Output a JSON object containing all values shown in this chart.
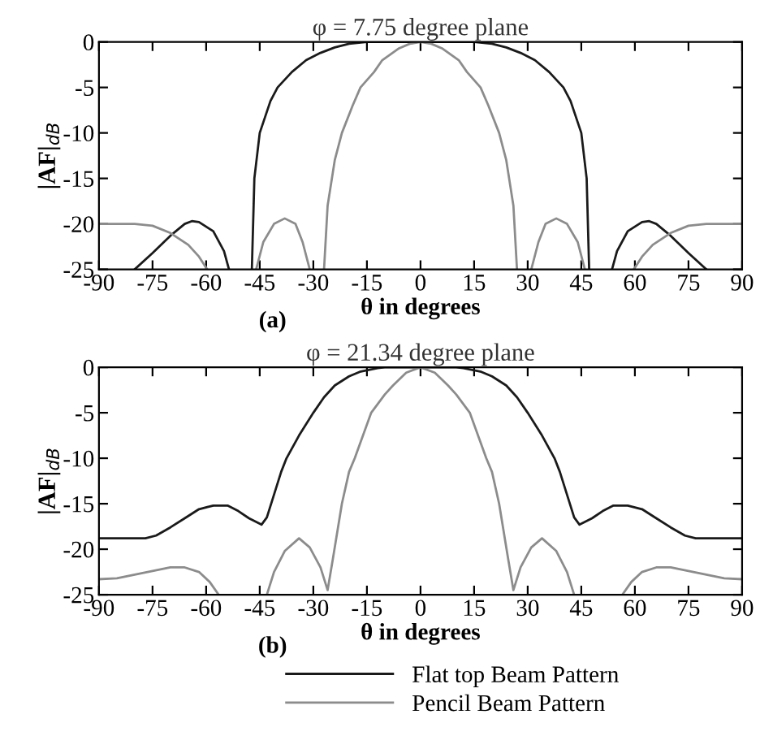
{
  "chart_data": [
    {
      "type": "line",
      "title": "φ = 7.75 degree plane",
      "xlabel": "θ in degrees",
      "ylabel": "|AF|$_{dB}$",
      "annotations": [
        "(a)"
      ],
      "xlim": [
        -90,
        90
      ],
      "ylim": [
        -25,
        0
      ],
      "xticks": [
        -90,
        -75,
        -60,
        -45,
        -30,
        -15,
        0,
        15,
        30,
        45,
        60,
        75,
        90
      ],
      "yticks": [
        -25,
        -20,
        -15,
        -10,
        -5,
        0
      ],
      "grid": false,
      "legend": false,
      "series": [
        {
          "color": "#1a1a1a",
          "x": [
            -80,
            -75,
            -70,
            -66,
            -64,
            -62,
            -58,
            -55,
            -53.6,
            -50,
            -47.2,
            -46.5,
            -45,
            -42,
            -40,
            -36,
            -32,
            -28,
            -24,
            -20,
            -15,
            0,
            15,
            20,
            24,
            28,
            32,
            36,
            40,
            42,
            45,
            46.5,
            47.2,
            50,
            53.6,
            55,
            58,
            62,
            64,
            66,
            70,
            75,
            80
          ],
          "values": [
            -25,
            -23.2,
            -21.3,
            -20,
            -19.7,
            -19.8,
            -20.8,
            -23,
            -25,
            null,
            -25,
            -15,
            -10,
            -6.5,
            -5,
            -3.3,
            -2,
            -1.2,
            -0.6,
            -0.2,
            0,
            0,
            0,
            -0.2,
            -0.6,
            -1.2,
            -2,
            -3.3,
            -5,
            -6.5,
            -10,
            -15,
            -25,
            null,
            -25,
            -23,
            -20.8,
            -19.8,
            -19.7,
            -20,
            -21.3,
            -23.2,
            -25
          ]
        },
        {
          "color": "#8c8c8c",
          "x": [
            -90,
            -80,
            -75,
            -70,
            -65,
            -62,
            -59.7,
            -52,
            -46,
            -44,
            -41,
            -38,
            -35,
            -33,
            -31,
            -29,
            -27,
            -26,
            -24,
            -22,
            -19,
            -16.8,
            -13,
            -10.7,
            -6,
            -3,
            0,
            3,
            6,
            10.7,
            13,
            16.8,
            19,
            22,
            24,
            26,
            27,
            29,
            31,
            33,
            35,
            38,
            41,
            44,
            46,
            52,
            59.7,
            62,
            65,
            70,
            75,
            80,
            90
          ],
          "values": [
            -20,
            -20,
            -20.2,
            -21,
            -22.3,
            -23.6,
            -25,
            null,
            -25,
            -22,
            -20,
            -19.4,
            -20,
            -22,
            -25,
            null,
            -25,
            -18,
            -13,
            -10,
            -7,
            -5,
            -3.3,
            -2,
            -0.7,
            -0.2,
            0,
            -0.2,
            -0.7,
            -2,
            -3.3,
            -5,
            -7,
            -10,
            -13,
            -18,
            -25,
            null,
            -25,
            -22,
            -20,
            -19.4,
            -20,
            -22,
            -25,
            null,
            -25,
            -23.6,
            -22.3,
            -21,
            -20.2,
            -20,
            -20
          ]
        }
      ]
    },
    {
      "type": "line",
      "title": "φ = 21.34 degree plane",
      "xlabel": "θ in degrees",
      "ylabel": "|AF|$_{dB}$",
      "annotations": [
        "(b)"
      ],
      "xlim": [
        -90,
        90
      ],
      "ylim": [
        -25,
        0
      ],
      "xticks": [
        -90,
        -75,
        -60,
        -45,
        -30,
        -15,
        0,
        15,
        30,
        45,
        60,
        75,
        90
      ],
      "yticks": [
        -25,
        -20,
        -15,
        -10,
        -5,
        0
      ],
      "grid": false,
      "legend": "bottom",
      "series": [
        {
          "name": "Flat top Beam Pattern",
          "color": "#1a1a1a",
          "x": [
            -90,
            -77,
            -74,
            -70,
            -66,
            -62,
            -58,
            -54,
            -51,
            -48,
            -44.5,
            -43,
            -41,
            -39,
            -37.5,
            -34,
            -30,
            -27,
            -24,
            -20,
            -17,
            -12,
            -10,
            0,
            10,
            12,
            17,
            20,
            24,
            27,
            30,
            34,
            37.5,
            39,
            41,
            43,
            44.5,
            48,
            51,
            54,
            58,
            62,
            66,
            70,
            74,
            77,
            90
          ],
          "values": [
            -18.8,
            -18.8,
            -18.5,
            -17.6,
            -16.6,
            -15.6,
            -15.2,
            -15.2,
            -15.8,
            -16.6,
            -17.3,
            -16.5,
            -14,
            -11.5,
            -10,
            -7.5,
            -5,
            -3.3,
            -2,
            -1,
            -0.5,
            -0.1,
            0,
            0,
            0,
            -0.1,
            -0.5,
            -1,
            -2,
            -3.3,
            -5,
            -7.5,
            -10,
            -11.5,
            -14,
            -16.5,
            -17.3,
            -16.6,
            -15.8,
            -15.2,
            -15.2,
            -15.6,
            -16.6,
            -17.6,
            -18.5,
            -18.8,
            -18.8
          ]
        },
        {
          "name": "Pencil Beam Pattern",
          "color": "#8c8c8c",
          "x": [
            -90,
            -85,
            -80,
            -75,
            -70,
            -66,
            -62,
            -59,
            -56.5,
            -50,
            -43,
            -41,
            -38,
            -34,
            -31,
            -28,
            -26,
            -24.5,
            -22,
            -20,
            -18.4,
            -13.8,
            -10,
            -7.7,
            -4,
            0,
            4,
            7.7,
            10,
            13.8,
            18.4,
            20,
            22,
            24.5,
            26,
            28,
            31,
            34,
            38,
            41,
            43,
            50,
            56.5,
            59,
            62,
            66,
            70,
            75,
            80,
            85,
            90
          ],
          "values": [
            -23.3,
            -23.2,
            -22.8,
            -22.4,
            -22,
            -22,
            -22.5,
            -23.6,
            -25,
            null,
            -25,
            -22.5,
            -20.2,
            -18.8,
            -19.8,
            -22,
            -24.5,
            -21,
            -15,
            -11.5,
            -10,
            -5,
            -3,
            -2,
            -0.6,
            0,
            -0.6,
            -2,
            -3,
            -5,
            -10,
            -11.5,
            -15,
            -21,
            -24.5,
            -22,
            -19.8,
            -18.8,
            -20.2,
            -22.5,
            -25,
            null,
            -25,
            -23.6,
            -22.5,
            -22,
            -22,
            -22.4,
            -22.8,
            -23.2,
            -23.3
          ]
        }
      ]
    }
  ]
}
